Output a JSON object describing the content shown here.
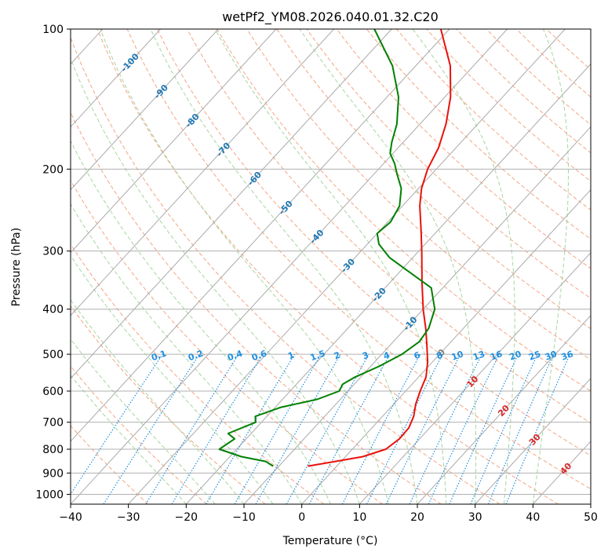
{
  "chart_data": {
    "type": "line",
    "title": "wetPf2_YM08.2026.040.01.32.C20",
    "xlabel": "Temperature (°C)",
    "ylabel": "Pressure (hPa)",
    "xlim": [
      -40,
      50
    ],
    "ylim": [
      1050,
      100
    ],
    "y_scale": "log",
    "x_ticks": [
      "−40",
      "−30",
      "−20",
      "−10",
      "0",
      "10",
      "20",
      "30",
      "40",
      "50"
    ],
    "y_ticks": [
      {
        "p": 100,
        "label": "100"
      },
      {
        "p": 200,
        "label": "200"
      },
      {
        "p": 300,
        "label": "300"
      },
      {
        "p": 400,
        "label": "400"
      },
      {
        "p": 500,
        "label": "500"
      },
      {
        "p": 600,
        "label": "600"
      },
      {
        "p": 700,
        "label": "700"
      },
      {
        "p": 800,
        "label": "800"
      },
      {
        "p": 900,
        "label": "900"
      },
      {
        "p": 1000,
        "label": "1000"
      }
    ],
    "series": [
      {
        "role": "temperature",
        "color": "#e8120b",
        "points": [
          {
            "p": 870,
            "t": -5.0
          },
          {
            "p": 850,
            "t": -1.0
          },
          {
            "p": 830,
            "t": 3.0
          },
          {
            "p": 800,
            "t": 5.8
          },
          {
            "p": 760,
            "t": 6.5
          },
          {
            "p": 720,
            "t": 6.4
          },
          {
            "p": 680,
            "t": 5.4
          },
          {
            "p": 640,
            "t": 3.8
          },
          {
            "p": 600,
            "t": 2.5
          },
          {
            "p": 560,
            "t": 1.3
          },
          {
            "p": 520,
            "t": -0.8
          },
          {
            "p": 480,
            "t": -3.5
          },
          {
            "p": 440,
            "t": -6.5
          },
          {
            "p": 400,
            "t": -10.0
          },
          {
            "p": 350,
            "t": -14.5
          },
          {
            "p": 300,
            "t": -19.5
          },
          {
            "p": 270,
            "t": -23.0
          },
          {
            "p": 240,
            "t": -27.0
          },
          {
            "p": 220,
            "t": -29.5
          },
          {
            "p": 200,
            "t": -31.5
          },
          {
            "p": 180,
            "t": -33.0
          },
          {
            "p": 160,
            "t": -35.5
          },
          {
            "p": 140,
            "t": -39.0
          },
          {
            "p": 120,
            "t": -44.0
          },
          {
            "p": 100,
            "t": -51.5
          }
        ]
      },
      {
        "role": "dewpoint",
        "color": "#008000",
        "points": [
          {
            "p": 870,
            "t": -11.0
          },
          {
            "p": 850,
            "t": -13.0
          },
          {
            "p": 830,
            "t": -18.0
          },
          {
            "p": 800,
            "t": -23.0
          },
          {
            "p": 760,
            "t": -22.0
          },
          {
            "p": 740,
            "t": -24.0
          },
          {
            "p": 700,
            "t": -21.0
          },
          {
            "p": 680,
            "t": -22.0
          },
          {
            "p": 650,
            "t": -19.0
          },
          {
            "p": 625,
            "t": -14.0
          },
          {
            "p": 600,
            "t": -11.5
          },
          {
            "p": 580,
            "t": -12.0
          },
          {
            "p": 560,
            "t": -11.0
          },
          {
            "p": 530,
            "t": -8.5
          },
          {
            "p": 500,
            "t": -6.5
          },
          {
            "p": 470,
            "t": -5.5
          },
          {
            "p": 440,
            "t": -6.0
          },
          {
            "p": 400,
            "t": -8.0
          },
          {
            "p": 360,
            "t": -12.0
          },
          {
            "p": 330,
            "t": -19.0
          },
          {
            "p": 310,
            "t": -24.0
          },
          {
            "p": 290,
            "t": -28.0
          },
          {
            "p": 275,
            "t": -30.0
          },
          {
            "p": 260,
            "t": -29.5
          },
          {
            "p": 240,
            "t": -30.5
          },
          {
            "p": 220,
            "t": -33.0
          },
          {
            "p": 205,
            "t": -36.0
          },
          {
            "p": 195,
            "t": -38.0
          },
          {
            "p": 185,
            "t": -40.5
          },
          {
            "p": 175,
            "t": -42.0
          },
          {
            "p": 160,
            "t": -44.0
          },
          {
            "p": 140,
            "t": -48.0
          },
          {
            "p": 120,
            "t": -54.0
          },
          {
            "p": 100,
            "t": -63.0
          }
        ]
      }
    ],
    "isotherm_labels": [
      {
        "t": -100,
        "label": "-100"
      },
      {
        "t": -90,
        "label": "-90"
      },
      {
        "t": -80,
        "label": "-80"
      },
      {
        "t": -70,
        "label": "-70"
      },
      {
        "t": -60,
        "label": "-60"
      },
      {
        "t": -50,
        "label": "-50"
      },
      {
        "t": -40,
        "label": "-40"
      },
      {
        "t": -30,
        "label": "-30"
      },
      {
        "t": -20,
        "label": "-20"
      },
      {
        "t": -10,
        "label": "-10"
      },
      {
        "t": 0,
        "label": "0"
      },
      {
        "t": 10,
        "label": "10"
      },
      {
        "t": 20,
        "label": "20"
      },
      {
        "t": 30,
        "label": "30"
      },
      {
        "t": 40,
        "label": "40"
      }
    ],
    "mixing_ratio_labels": [
      "0.1",
      "0.2",
      "0.4",
      "0.6",
      "1",
      "1.5",
      "2",
      "3",
      "4",
      "6",
      "8",
      "10",
      "13",
      "16",
      "20",
      "25",
      "30",
      "36"
    ],
    "mixing_ratio_values": [
      0.1,
      0.2,
      0.4,
      0.6,
      1,
      1.5,
      2,
      3,
      4,
      6,
      8,
      10,
      13,
      16,
      20,
      25,
      30,
      36
    ],
    "grid": true,
    "colors": {
      "isotherm": "#aaaaaa",
      "isotherm_label_cold": "#1f77b4",
      "isotherm_label_zero": "#7f7f7f",
      "isotherm_label_warm": "#d62728",
      "dry_adiabat": "#f4a582",
      "moist_adiabat": "#a6d5a0",
      "mixing_ratio": "#1f8fe0",
      "pressure_grid": "#b0b0b0"
    }
  }
}
